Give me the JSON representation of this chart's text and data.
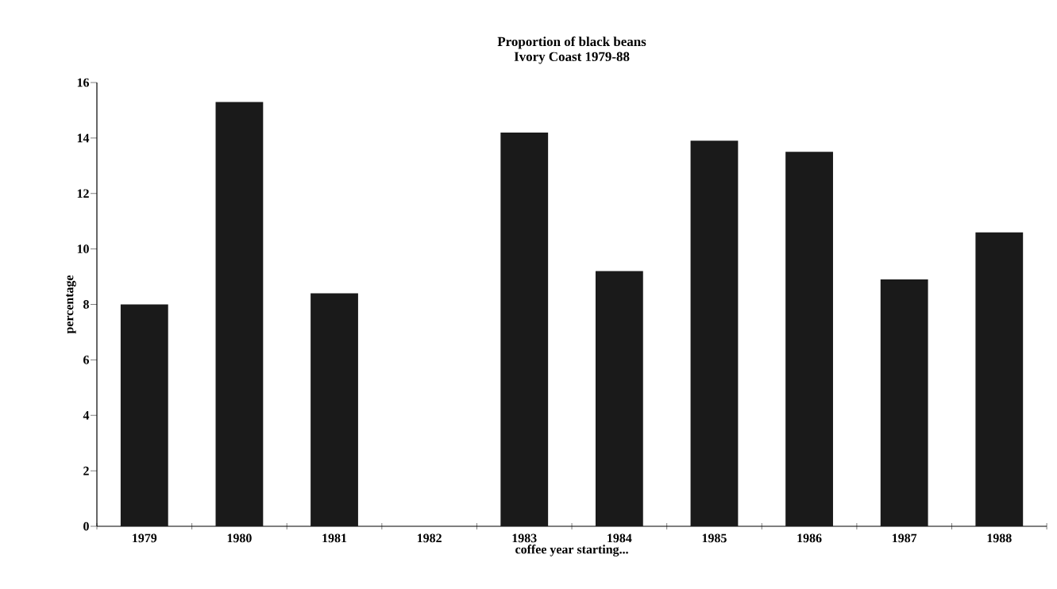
{
  "chart_data": {
    "type": "bar",
    "title": "Proportion of black beans",
    "subtitle": "Ivory Coast  1979-88",
    "xlabel": "coffee year starting...",
    "ylabel": "percentage",
    "categories": [
      "1979",
      "1980",
      "1981",
      "1982",
      "1983",
      "1984",
      "1985",
      "1986",
      "1987",
      "1988"
    ],
    "values": [
      8.0,
      15.3,
      8.4,
      null,
      14.2,
      9.2,
      13.9,
      13.5,
      8.9,
      10.6
    ],
    "color": "#1a1a1a",
    "ylim": [
      0,
      16
    ],
    "yticks": [
      0,
      2,
      4,
      6,
      8,
      10,
      12,
      14,
      16
    ],
    "grid": false
  }
}
